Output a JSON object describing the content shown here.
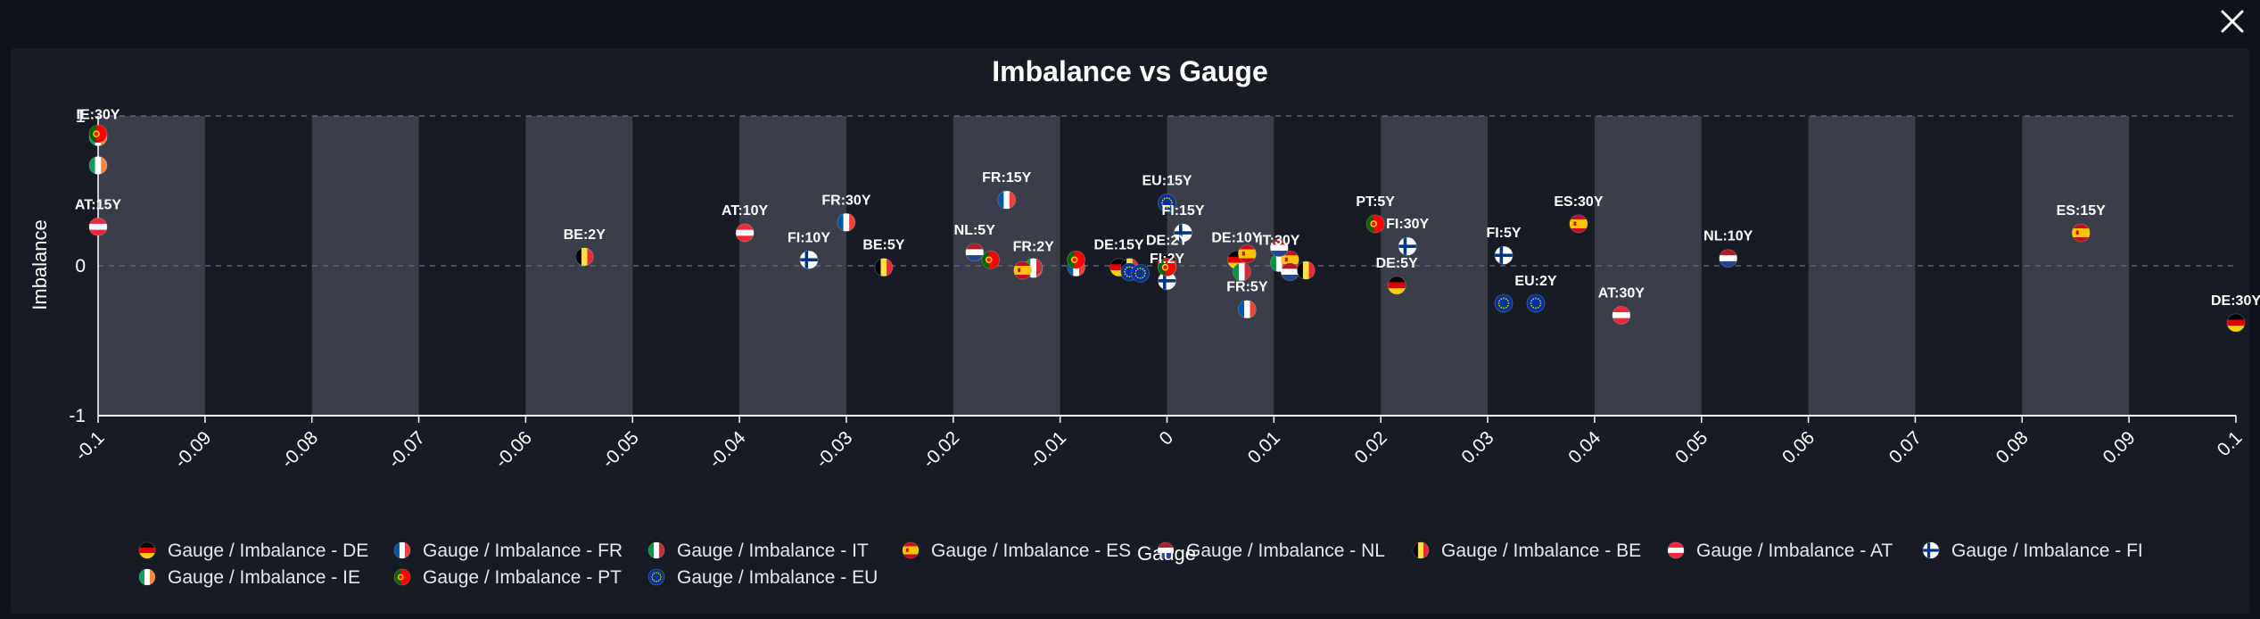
{
  "chart_data": {
    "type": "scatter",
    "title": "Imbalance vs Gauge",
    "xlabel": "Gauge",
    "ylabel": "Imbalance",
    "xlim": [
      -0.1,
      0.1
    ],
    "ylim": [
      -1,
      1
    ],
    "xticks": [
      "-0.1",
      "-0.09",
      "-0.08",
      "-0.07",
      "-0.06",
      "-0.05",
      "-0.04",
      "-0.03",
      "-0.02",
      "-0.01",
      "0",
      "0.01",
      "0.02",
      "0.03",
      "0.04",
      "0.05",
      "0.06",
      "0.07",
      "0.08",
      "0.09",
      "0.1"
    ],
    "yticks": [
      "1",
      "0",
      "-1"
    ],
    "legend_position": "bottom",
    "band_color": "#3a3e48",
    "series": [
      {
        "name": "Gauge / Imbalance - DE",
        "flag": "DE",
        "points": [
          {
            "x": 0.1,
            "y": -0.38,
            "label": "DE:30Y"
          },
          {
            "x": 0.0215,
            "y": -0.13,
            "label": "DE:5Y"
          },
          {
            "x": -0.0045,
            "y": -0.01,
            "label": "DE:15Y"
          },
          {
            "x": 0.0065,
            "y": 0.04,
            "label": "DE:10Y"
          },
          {
            "x": 0.0,
            "y": 0.02,
            "label": "DE:2Y"
          }
        ]
      },
      {
        "name": "Gauge / Imbalance - FR",
        "flag": "FR",
        "points": [
          {
            "x": -0.015,
            "y": 0.44,
            "label": "FR:15Y"
          },
          {
            "x": -0.03,
            "y": 0.29,
            "label": "FR:30Y"
          },
          {
            "x": 0.0075,
            "y": -0.29,
            "label": "FR:5Y"
          },
          {
            "x": -0.0125,
            "y": -0.02,
            "label": "FR:2Y"
          },
          {
            "x": -0.0085,
            "y": -0.01,
            "label": ""
          }
        ]
      },
      {
        "name": "Gauge / Imbalance - IT",
        "flag": "IT",
        "points": [
          {
            "x": 0.007,
            "y": -0.04,
            "label": ""
          },
          {
            "x": 0.0105,
            "y": 0.02,
            "label": "IT:30Y"
          },
          {
            "x": -0.0125,
            "y": -0.01,
            "label": ""
          }
        ]
      },
      {
        "name": "Gauge / Imbalance - ES",
        "flag": "ES",
        "points": [
          {
            "x": 0.0855,
            "y": 0.22,
            "label": "ES:15Y"
          },
          {
            "x": 0.0385,
            "y": 0.28,
            "label": "ES:30Y"
          },
          {
            "x": -0.0135,
            "y": -0.03,
            "label": ""
          },
          {
            "x": 0.0075,
            "y": 0.08,
            "label": ""
          },
          {
            "x": 0.0115,
            "y": 0.04,
            "label": ""
          }
        ]
      },
      {
        "name": "Gauge / Imbalance - NL",
        "flag": "NL",
        "points": [
          {
            "x": 0.0525,
            "y": 0.05,
            "label": "NL:10Y"
          },
          {
            "x": -0.018,
            "y": 0.09,
            "label": "NL:5Y"
          },
          {
            "x": 0.0105,
            "y": 0.12,
            "label": ""
          },
          {
            "x": 0.0115,
            "y": -0.04,
            "label": ""
          }
        ]
      },
      {
        "name": "Gauge / Imbalance - BE",
        "flag": "BE",
        "points": [
          {
            "x": -0.0545,
            "y": 0.06,
            "label": "BE:2Y"
          },
          {
            "x": -0.0265,
            "y": -0.01,
            "label": "BE:5Y"
          },
          {
            "x": 0.013,
            "y": -0.03,
            "label": ""
          },
          {
            "x": -0.0035,
            "y": -0.01,
            "label": ""
          }
        ]
      },
      {
        "name": "Gauge / Imbalance - AT",
        "flag": "AT",
        "points": [
          {
            "x": -0.1,
            "y": 0.26,
            "label": "AT:15Y"
          },
          {
            "x": -0.0395,
            "y": 0.22,
            "label": "AT:10Y"
          },
          {
            "x": 0.0425,
            "y": -0.33,
            "label": "AT:30Y"
          },
          {
            "x": 0.0,
            "y": -0.01,
            "label": ""
          }
        ]
      },
      {
        "name": "Gauge / Imbalance - FI",
        "flag": "FI",
        "points": [
          {
            "x": -0.0335,
            "y": 0.04,
            "label": "FI:10Y"
          },
          {
            "x": 0.0015,
            "y": 0.22,
            "label": "FI:15Y"
          },
          {
            "x": 0.0225,
            "y": 0.13,
            "label": "FI:30Y"
          },
          {
            "x": 0.0315,
            "y": 0.07,
            "label": "FI:5Y"
          },
          {
            "x": 0.0,
            "y": -0.1,
            "label": "FI:2Y"
          }
        ]
      },
      {
        "name": "Gauge / Imbalance - IE",
        "flag": "IE",
        "points": [
          {
            "x": -0.1,
            "y": 0.67,
            "label": ""
          },
          {
            "x": -0.1,
            "y": 0.86,
            "label": "IE:30Y"
          }
        ]
      },
      {
        "name": "Gauge / Imbalance - PT",
        "flag": "PT",
        "points": [
          {
            "x": -0.1,
            "y": 0.88,
            "label": ""
          },
          {
            "x": 0.0195,
            "y": 0.28,
            "label": "PT:5Y"
          },
          {
            "x": -0.0165,
            "y": 0.04,
            "label": ""
          },
          {
            "x": -0.0085,
            "y": 0.04,
            "label": ""
          },
          {
            "x": 0.0,
            "y": -0.01,
            "label": ""
          }
        ]
      },
      {
        "name": "Gauge / Imbalance - EU",
        "flag": "EU",
        "points": [
          {
            "x": 0.0,
            "y": 0.42,
            "label": "EU:15Y"
          },
          {
            "x": 0.0315,
            "y": -0.25,
            "label": ""
          },
          {
            "x": 0.0345,
            "y": -0.25,
            "label": "EU:2Y"
          },
          {
            "x": -0.0035,
            "y": -0.04,
            "label": ""
          },
          {
            "x": -0.0025,
            "y": -0.05,
            "label": ""
          }
        ]
      }
    ]
  },
  "ui": {
    "close_icon": "close-icon"
  }
}
